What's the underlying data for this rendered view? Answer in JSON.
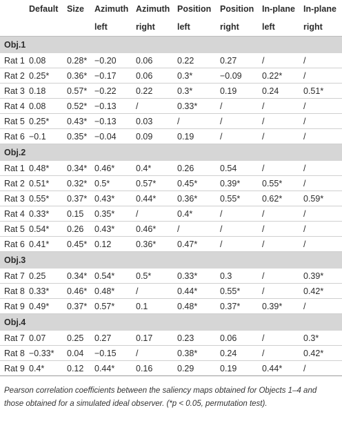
{
  "table": {
    "columns": [
      [
        "Default"
      ],
      [
        "Size"
      ],
      [
        "Azimuth",
        "left"
      ],
      [
        "Azimuth",
        "right"
      ],
      [
        "Position",
        "left"
      ],
      [
        "Position",
        "right"
      ],
      [
        "In-plane",
        "left"
      ],
      [
        "In-plane",
        "right"
      ]
    ],
    "groups": [
      {
        "label": "Obj.1",
        "rows": [
          [
            "Rat 1",
            "0.08",
            "0.28*",
            "−0.20",
            "0.06",
            "0.22",
            "0.27",
            "/",
            "/"
          ],
          [
            "Rat 2",
            "0.25*",
            "0.36*",
            "−0.17",
            "0.06",
            "0.3*",
            "−0.09",
            "0.22*",
            "/"
          ],
          [
            "Rat 3",
            "0.18",
            "0.57*",
            "−0.22",
            "0.22",
            "0.3*",
            "0.19",
            "0.24",
            "0.51*"
          ],
          [
            "Rat 4",
            "0.08",
            "0.52*",
            "−0.13",
            "/",
            "0.33*",
            "/",
            "/",
            "/"
          ],
          [
            "Rat 5",
            "0.25*",
            "0.43*",
            "−0.13",
            "0.03",
            "/",
            "/",
            "/",
            "/"
          ],
          [
            "Rat 6",
            "−0.1",
            "0.35*",
            "−0.04",
            "0.09",
            "0.19",
            "/",
            "/",
            "/"
          ]
        ]
      },
      {
        "label": "Obj.2",
        "rows": [
          [
            "Rat 1",
            "0.48*",
            "0.34*",
            "0.46*",
            "0.4*",
            "0.26",
            "0.54",
            "/",
            "/"
          ],
          [
            "Rat 2",
            "0.51*",
            "0.32*",
            "0.5*",
            "0.57*",
            "0.45*",
            "0.39*",
            "0.55*",
            "/"
          ],
          [
            "Rat 3",
            "0.55*",
            "0.37*",
            "0.43*",
            "0.44*",
            "0.36*",
            "0.55*",
            "0.62*",
            "0.59*"
          ],
          [
            "Rat 4",
            "0.33*",
            "0.15",
            "0.35*",
            "/",
            "0.4*",
            "/",
            "/",
            "/"
          ],
          [
            "Rat 5",
            "0.54*",
            "0.26",
            "0.43*",
            "0.46*",
            "/",
            "/",
            "/",
            "/"
          ],
          [
            "Rat 6",
            "0.41*",
            "0.45*",
            "0.12",
            "0.36*",
            "0.47*",
            "/",
            "/",
            "/"
          ]
        ]
      },
      {
        "label": "Obj.3",
        "rows": [
          [
            "Rat 7",
            "0.25",
            "0.34*",
            "0.54*",
            "0.5*",
            "0.33*",
            "0.3",
            "/",
            "0.39*"
          ],
          [
            "Rat 8",
            "0.33*",
            "0.46*",
            "0.48*",
            "/",
            "0.44*",
            "0.55*",
            "/",
            "0.42*"
          ],
          [
            "Rat 9",
            "0.49*",
            "0.37*",
            "0.57*",
            "0.1",
            "0.48*",
            "0.37*",
            "0.39*",
            "/"
          ]
        ]
      },
      {
        "label": "Obj.4",
        "rows": [
          [
            "Rat 7",
            "0.07",
            "0.25",
            "0.27",
            "0.17",
            "0.23",
            "0.06",
            "/",
            "0.3*"
          ],
          [
            "Rat 8",
            "−0.33*",
            "0.04",
            "−0.15",
            "/",
            "0.38*",
            "0.24",
            "/",
            "0.42*"
          ],
          [
            "Rat 9",
            "0.4*",
            "0.12",
            "0.44*",
            "0.16",
            "0.29",
            "0.19",
            "0.44*",
            "/"
          ]
        ]
      }
    ],
    "caption": "Pearson correlation coefficients between the saliency maps obtained for Objects 1–4 and those obtained for a simulated ideal observer. (*p < 0.05, permutation test)."
  }
}
